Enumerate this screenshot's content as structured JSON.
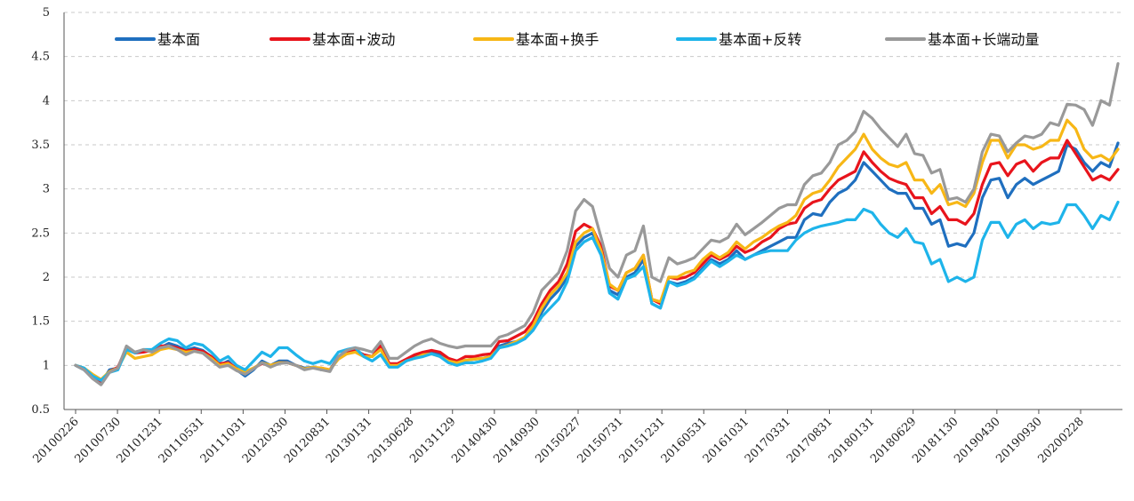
{
  "chart_data": {
    "type": "line",
    "title": "",
    "xlabel": "",
    "ylabel": "",
    "ylim": [
      0.5,
      5
    ],
    "yticks": [
      "0.5",
      "1",
      "1.5",
      "2",
      "2.5",
      "3",
      "3.5",
      "4",
      "4.5",
      "5"
    ],
    "grid": true,
    "legend_position": "top",
    "x_ticks": [
      "20100226",
      "20100730",
      "20101231",
      "20110531",
      "20111031",
      "20120330",
      "20120831",
      "20130131",
      "20130628",
      "20131129",
      "20140430",
      "20140930",
      "20150227",
      "20150731",
      "20151231",
      "20160531",
      "20161031",
      "20170331",
      "20170831",
      "20180131",
      "20180629",
      "20181130",
      "20190430",
      "20190930",
      "20200228"
    ],
    "series": [
      {
        "name": "基本面",
        "color": "#1f6fbf",
        "values": [
          1.0,
          0.95,
          0.86,
          0.8,
          0.95,
          0.97,
          1.2,
          1.15,
          1.17,
          1.17,
          1.2,
          1.25,
          1.22,
          1.17,
          1.2,
          1.17,
          1.1,
          1.0,
          1.05,
          0.95,
          0.88,
          0.95,
          1.05,
          1.0,
          1.05,
          1.05,
          1.0,
          0.97,
          0.98,
          0.95,
          0.95,
          1.1,
          1.15,
          1.17,
          1.12,
          1.1,
          1.2,
          1.0,
          1.0,
          1.05,
          1.1,
          1.12,
          1.15,
          1.13,
          1.05,
          1.02,
          1.06,
          1.07,
          1.08,
          1.1,
          1.22,
          1.25,
          1.27,
          1.3,
          1.4,
          1.6,
          1.75,
          1.85,
          2.0,
          2.35,
          2.45,
          2.5,
          2.3,
          1.85,
          1.8,
          2.0,
          2.05,
          2.2,
          1.7,
          1.65,
          1.95,
          1.92,
          1.95,
          2.0,
          2.1,
          2.2,
          2.15,
          2.2,
          2.3,
          2.2,
          2.25,
          2.3,
          2.35,
          2.4,
          2.45,
          2.45,
          2.65,
          2.72,
          2.7,
          2.85,
          2.95,
          3.0,
          3.1,
          3.3,
          3.2,
          3.1,
          3.0,
          2.95,
          2.95,
          2.78,
          2.78,
          2.6,
          2.65,
          2.35,
          2.38,
          2.35,
          2.5,
          2.9,
          3.1,
          3.12,
          2.9,
          3.05,
          3.12,
          3.05,
          3.1,
          3.15,
          3.2,
          3.5,
          3.45,
          3.3,
          3.2,
          3.3,
          3.25,
          3.52
        ]
      },
      {
        "name": "基本面+波动",
        "color": "#e8141c",
        "values": [
          1.0,
          0.96,
          0.88,
          0.82,
          0.93,
          0.98,
          1.2,
          1.14,
          1.15,
          1.17,
          1.22,
          1.22,
          1.2,
          1.16,
          1.18,
          1.16,
          1.1,
          1.02,
          1.03,
          0.97,
          0.92,
          0.97,
          1.02,
          1.0,
          1.03,
          1.03,
          1.0,
          0.96,
          0.97,
          0.97,
          0.95,
          1.08,
          1.15,
          1.17,
          1.12,
          1.1,
          1.22,
          1.02,
          1.02,
          1.07,
          1.12,
          1.15,
          1.17,
          1.15,
          1.08,
          1.05,
          1.1,
          1.1,
          1.12,
          1.13,
          1.27,
          1.28,
          1.33,
          1.38,
          1.5,
          1.7,
          1.85,
          1.95,
          2.15,
          2.52,
          2.6,
          2.55,
          2.35,
          1.9,
          1.85,
          2.05,
          2.1,
          2.25,
          1.75,
          1.7,
          2.0,
          1.98,
          2.0,
          2.05,
          2.15,
          2.25,
          2.2,
          2.25,
          2.35,
          2.28,
          2.32,
          2.4,
          2.45,
          2.55,
          2.6,
          2.62,
          2.78,
          2.85,
          2.88,
          3.0,
          3.1,
          3.15,
          3.2,
          3.42,
          3.3,
          3.2,
          3.12,
          3.08,
          3.05,
          2.9,
          2.9,
          2.72,
          2.8,
          2.65,
          2.65,
          2.6,
          2.72,
          3.05,
          3.28,
          3.3,
          3.15,
          3.28,
          3.32,
          3.2,
          3.3,
          3.35,
          3.35,
          3.55,
          3.4,
          3.25,
          3.1,
          3.15,
          3.1,
          3.22
        ]
      },
      {
        "name": "基本面+换手",
        "color": "#f7b716",
        "values": [
          1.0,
          0.97,
          0.9,
          0.84,
          0.93,
          0.97,
          1.15,
          1.08,
          1.1,
          1.12,
          1.18,
          1.2,
          1.18,
          1.15,
          1.16,
          1.14,
          1.08,
          1.0,
          1.02,
          0.96,
          0.93,
          0.97,
          1.03,
          1.0,
          1.03,
          1.03,
          1.0,
          0.96,
          0.98,
          0.97,
          0.95,
          1.07,
          1.13,
          1.15,
          1.1,
          1.1,
          1.18,
          1.0,
          1.0,
          1.05,
          1.08,
          1.12,
          1.13,
          1.1,
          1.05,
          1.03,
          1.06,
          1.07,
          1.08,
          1.1,
          1.2,
          1.23,
          1.27,
          1.32,
          1.45,
          1.65,
          1.8,
          1.9,
          2.05,
          2.4,
          2.5,
          2.55,
          2.3,
          1.92,
          1.85,
          2.05,
          2.1,
          2.25,
          1.75,
          1.72,
          2.0,
          2.0,
          2.05,
          2.08,
          2.2,
          2.28,
          2.22,
          2.28,
          2.4,
          2.32,
          2.4,
          2.45,
          2.52,
          2.58,
          2.62,
          2.7,
          2.88,
          2.95,
          2.98,
          3.1,
          3.25,
          3.35,
          3.45,
          3.62,
          3.45,
          3.35,
          3.28,
          3.25,
          3.3,
          3.1,
          3.1,
          2.95,
          3.05,
          2.82,
          2.85,
          2.8,
          2.95,
          3.3,
          3.55,
          3.55,
          3.35,
          3.5,
          3.5,
          3.45,
          3.48,
          3.55,
          3.55,
          3.78,
          3.68,
          3.45,
          3.35,
          3.38,
          3.32,
          3.45
        ]
      },
      {
        "name": "基本面+反转",
        "color": "#1eb4ea",
        "values": [
          1.0,
          0.97,
          0.88,
          0.83,
          0.92,
          0.95,
          1.18,
          1.14,
          1.18,
          1.18,
          1.25,
          1.3,
          1.28,
          1.2,
          1.25,
          1.23,
          1.15,
          1.05,
          1.1,
          1.0,
          0.95,
          1.05,
          1.15,
          1.1,
          1.2,
          1.2,
          1.12,
          1.05,
          1.02,
          1.05,
          1.02,
          1.15,
          1.18,
          1.2,
          1.1,
          1.05,
          1.12,
          0.98,
          0.98,
          1.05,
          1.08,
          1.1,
          1.13,
          1.1,
          1.03,
          1.0,
          1.03,
          1.03,
          1.05,
          1.08,
          1.2,
          1.22,
          1.25,
          1.3,
          1.4,
          1.55,
          1.65,
          1.75,
          1.95,
          2.3,
          2.4,
          2.45,
          2.25,
          1.82,
          1.75,
          1.98,
          2.02,
          2.12,
          1.7,
          1.65,
          1.95,
          1.9,
          1.93,
          1.98,
          2.08,
          2.18,
          2.12,
          2.18,
          2.25,
          2.2,
          2.25,
          2.28,
          2.3,
          2.3,
          2.3,
          2.42,
          2.5,
          2.55,
          2.58,
          2.6,
          2.62,
          2.65,
          2.65,
          2.77,
          2.73,
          2.6,
          2.5,
          2.45,
          2.55,
          2.4,
          2.38,
          2.15,
          2.2,
          1.95,
          2.0,
          1.95,
          2.0,
          2.42,
          2.62,
          2.62,
          2.45,
          2.6,
          2.65,
          2.55,
          2.62,
          2.6,
          2.62,
          2.82,
          2.82,
          2.7,
          2.55,
          2.7,
          2.65,
          2.85
        ]
      },
      {
        "name": "基本面+长端动量",
        "color": "#999999",
        "values": [
          1.0,
          0.95,
          0.85,
          0.78,
          0.92,
          0.97,
          1.22,
          1.15,
          1.18,
          1.15,
          1.2,
          1.22,
          1.18,
          1.12,
          1.16,
          1.14,
          1.06,
          0.98,
          1.0,
          0.94,
          0.9,
          0.96,
          1.03,
          0.98,
          1.02,
          1.03,
          1.0,
          0.95,
          0.97,
          0.95,
          0.93,
          1.1,
          1.17,
          1.2,
          1.18,
          1.15,
          1.27,
          1.08,
          1.08,
          1.15,
          1.22,
          1.27,
          1.3,
          1.25,
          1.22,
          1.2,
          1.22,
          1.22,
          1.22,
          1.22,
          1.32,
          1.35,
          1.4,
          1.45,
          1.6,
          1.85,
          1.95,
          2.05,
          2.3,
          2.75,
          2.88,
          2.8,
          2.45,
          2.1,
          2.0,
          2.25,
          2.3,
          2.58,
          2.0,
          1.95,
          2.22,
          2.15,
          2.18,
          2.22,
          2.32,
          2.42,
          2.4,
          2.45,
          2.6,
          2.48,
          2.55,
          2.62,
          2.7,
          2.78,
          2.82,
          2.82,
          3.05,
          3.15,
          3.18,
          3.3,
          3.5,
          3.55,
          3.65,
          3.88,
          3.8,
          3.68,
          3.58,
          3.48,
          3.62,
          3.4,
          3.38,
          3.18,
          3.22,
          2.88,
          2.9,
          2.85,
          3.0,
          3.42,
          3.62,
          3.6,
          3.42,
          3.52,
          3.6,
          3.58,
          3.62,
          3.75,
          3.72,
          3.96,
          3.95,
          3.9,
          3.72,
          4.0,
          3.95,
          4.42
        ]
      }
    ]
  }
}
